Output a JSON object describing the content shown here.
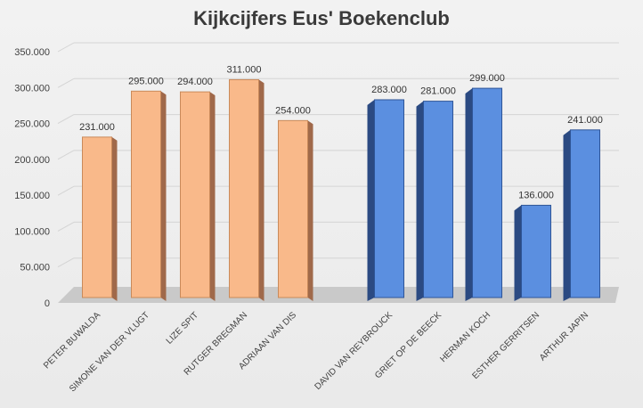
{
  "chart_data": {
    "type": "bar",
    "title": "Kijkcijfers Eus' Boekenclub",
    "categories": [
      "PETER BUWALDA",
      "SIMONE VAN DER VLUGT",
      "LIZE SPIT",
      "RUTGER BREGMAN",
      "ADRIAAN VAN DIS",
      "DAVID VAN REYBROUCK",
      "GRIET OP DE BEECK",
      "HERMAN KOCH",
      "ESTHER GERRITSEN",
      "ARTHUR JAPIN"
    ],
    "values": [
      231000,
      295000,
      294000,
      311000,
      254000,
      283000,
      281000,
      299000,
      136000,
      241000
    ],
    "data_labels": [
      "231.000",
      "295.000",
      "294.000",
      "311.000",
      "254.000",
      "283.000",
      "281.000",
      "299.000",
      "136.000",
      "241.000"
    ],
    "groups": [
      "orange",
      "orange",
      "orange",
      "orange",
      "orange",
      "blue",
      "blue",
      "blue",
      "blue",
      "blue"
    ],
    "y_ticks": [
      "0",
      "50.000",
      "100.000",
      "150.000",
      "200.000",
      "250.000",
      "300.000",
      "350.000"
    ],
    "ylim": [
      0,
      350000
    ],
    "grid": true,
    "legend": "none",
    "xlabel": "",
    "ylabel": "",
    "colors": {
      "orange_front": "#f9b98a",
      "orange_side": "#a0694a",
      "blue_front": "#5b8fe0",
      "blue_side": "#2b4a82",
      "floor": "#c9c9c9"
    }
  }
}
